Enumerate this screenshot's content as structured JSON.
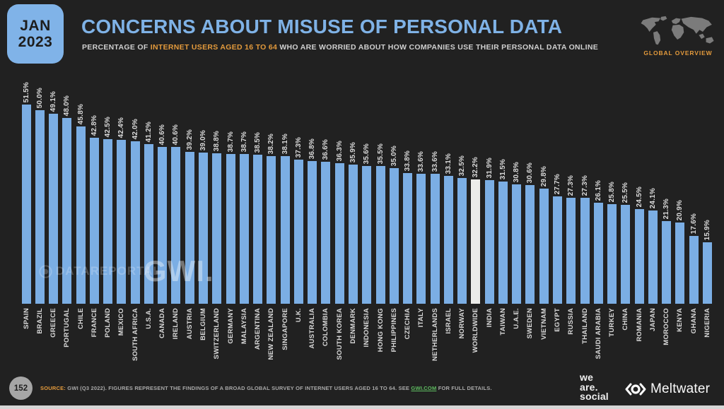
{
  "header": {
    "date_badge": {
      "month": "JAN",
      "year": "2023"
    },
    "title": "CONCERNS ABOUT MISUSE OF PERSONAL DATA",
    "subtitle_prefix": "PERCENTAGE OF ",
    "subtitle_highlight": "INTERNET USERS AGED 16 TO 64",
    "subtitle_suffix": " WHO ARE WORRIED ABOUT HOW COMPANIES USE THEIR PERSONAL DATA ONLINE",
    "overview_label": "GLOBAL OVERVIEW"
  },
  "chart_data": {
    "type": "bar",
    "title": "CONCERNS ABOUT MISUSE OF PERSONAL DATA",
    "ylabel": "% of internet users aged 16 to 64",
    "ylim": [
      0,
      55
    ],
    "grid": false,
    "value_suffix": "%",
    "highlight_category": "WORLDWIDE",
    "bar_color": "#7BAEE4",
    "highlight_color": "#ECECE9",
    "categories": [
      "SPAIN",
      "BRAZIL",
      "GREECE",
      "PORTUGAL",
      "CHILE",
      "FRANCE",
      "POLAND",
      "MEXICO",
      "SOUTH AFRICA",
      "U.S.A.",
      "CANADA",
      "IRELAND",
      "AUSTRIA",
      "BELGIUM",
      "SWITZERLAND",
      "GERMANY",
      "MALAYSIA",
      "ARGENTINA",
      "NEW ZEALAND",
      "SINGAPORE",
      "U.K.",
      "AUSTRALIA",
      "COLOMBIA",
      "SOUTH KOREA",
      "DENMARK",
      "INDONESIA",
      "HONG KONG",
      "PHILIPPINES",
      "CZECHIA",
      "ITALY",
      "NETHERLANDS",
      "ISRAEL",
      "NORWAY",
      "WORLDWIDE",
      "INDIA",
      "TAIWAN",
      "U.A.E.",
      "SWEDEN",
      "VIETNAM",
      "EGYPT",
      "RUSSIA",
      "THAILAND",
      "SAUDI ARABIA",
      "TURKEY",
      "CHINA",
      "ROMANIA",
      "JAPAN",
      "MOROCCO",
      "KENYA",
      "GHANA",
      "NIGERIA"
    ],
    "values": [
      51.5,
      50.0,
      49.1,
      48.0,
      45.8,
      42.8,
      42.5,
      42.4,
      42.0,
      41.2,
      40.6,
      40.6,
      39.2,
      39.0,
      38.8,
      38.7,
      38.7,
      38.5,
      38.2,
      38.1,
      37.3,
      36.8,
      36.6,
      36.3,
      35.9,
      35.6,
      35.5,
      35.0,
      33.8,
      33.6,
      33.6,
      33.1,
      32.5,
      32.2,
      31.9,
      31.5,
      30.8,
      30.6,
      29.8,
      27.7,
      27.3,
      27.3,
      26.1,
      25.8,
      25.5,
      24.5,
      24.1,
      21.3,
      20.9,
      17.6,
      15.9
    ]
  },
  "watermark": {
    "datareportal": "DATAREPORTAL",
    "gwi": "GWI."
  },
  "footer": {
    "page_number": "152",
    "source_label": "SOURCE:",
    "source_text_1": " GWI (Q3 2022). FIGURES REPRESENT THE FINDINGS OF A BROAD GLOBAL SURVEY OF INTERNET USERS AGED 16 TO 64. SEE ",
    "source_link": "GWI.COM",
    "source_text_2": " FOR FULL DETAILS.",
    "logo_we_are_social": [
      "we",
      "are.",
      "social"
    ],
    "logo_meltwater": "Meltwater"
  },
  "colors": {
    "background": "#212121",
    "accent_blue": "#7FB2E6",
    "accent_orange": "#E39A3C",
    "accent_green": "#5FBD61",
    "label_text": "#d9d9d9"
  }
}
